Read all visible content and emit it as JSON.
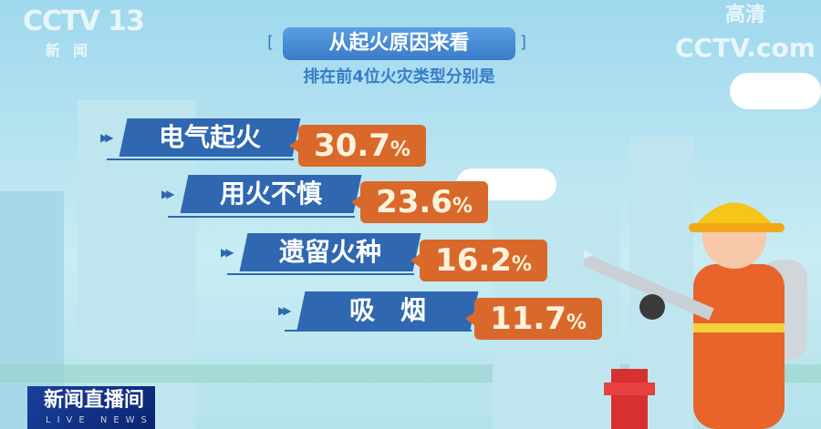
{
  "channel_logo": {
    "brand": "CCTV",
    "number": "13",
    "sub": "新闻"
  },
  "hd_logo": {
    "line1": "高清",
    "line2": "CCTV.com"
  },
  "title": "从起火原因来看",
  "subtitle": "排在前4位火灾类型分别是",
  "items": [
    {
      "label": "电气起火",
      "value": "30.7",
      "unit": "%"
    },
    {
      "label": "用火不慎",
      "value": "23.6",
      "unit": "%"
    },
    {
      "label": "遗留火种",
      "value": "16.2",
      "unit": "%"
    },
    {
      "label": "吸　烟",
      "value": "11.7",
      "unit": "%"
    }
  ],
  "program": {
    "name": "新闻直播间",
    "en": "LIVE NEWS"
  },
  "colors": {
    "label_bg": "#2f68b0",
    "value_bg": "#d9692a",
    "value_text": "#fdf3dc"
  }
}
